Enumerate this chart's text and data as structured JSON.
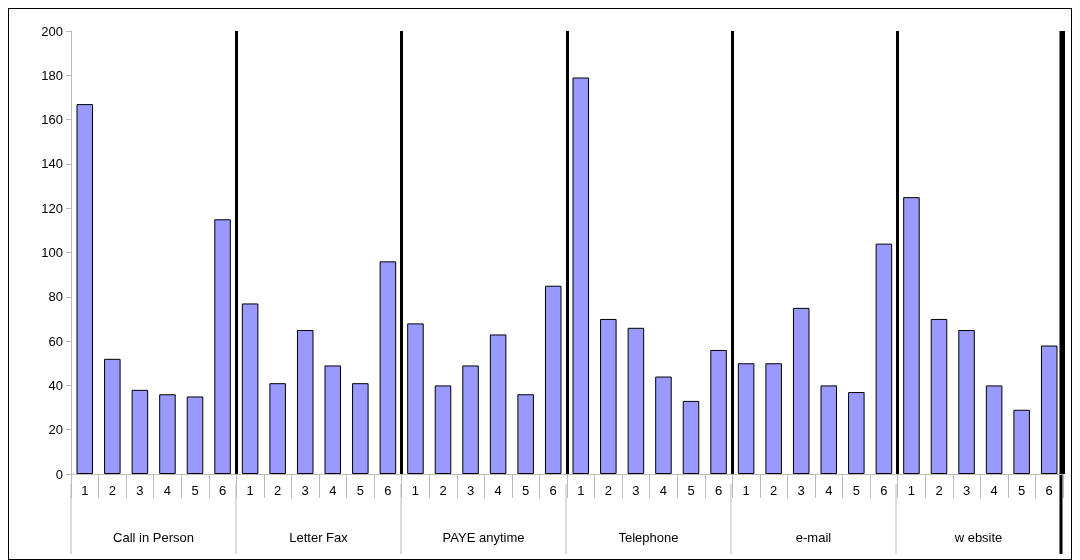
{
  "chart_data": {
    "type": "bar",
    "categories": [
      "1",
      "2",
      "3",
      "4",
      "5",
      "6",
      "1",
      "2",
      "3",
      "4",
      "5",
      "6",
      "1",
      "2",
      "3",
      "4",
      "5",
      "6",
      "1",
      "2",
      "3",
      "4",
      "5",
      "6",
      "1",
      "2",
      "3",
      "4",
      "5",
      "6",
      "1",
      "2",
      "3",
      "4",
      "5",
      "6"
    ],
    "values": [
      167,
      52,
      38,
      36,
      35,
      115,
      77,
      41,
      65,
      49,
      41,
      96,
      68,
      40,
      49,
      63,
      36,
      85,
      179,
      70,
      66,
      44,
      33,
      56,
      50,
      50,
      75,
      40,
      37,
      104,
      125,
      70,
      65,
      40,
      29,
      58
    ],
    "color": "#9999ff",
    "annotations": [
      "Call in Person",
      "Letter Fax",
      "PAYE anytime",
      "Telephone",
      "e-mail",
      "w ebsite"
    ],
    "ylim": [
      0,
      200
    ],
    "yticks": [
      0,
      20,
      40,
      60,
      80,
      100,
      120,
      140,
      160,
      180,
      200
    ],
    "grid": false
  }
}
